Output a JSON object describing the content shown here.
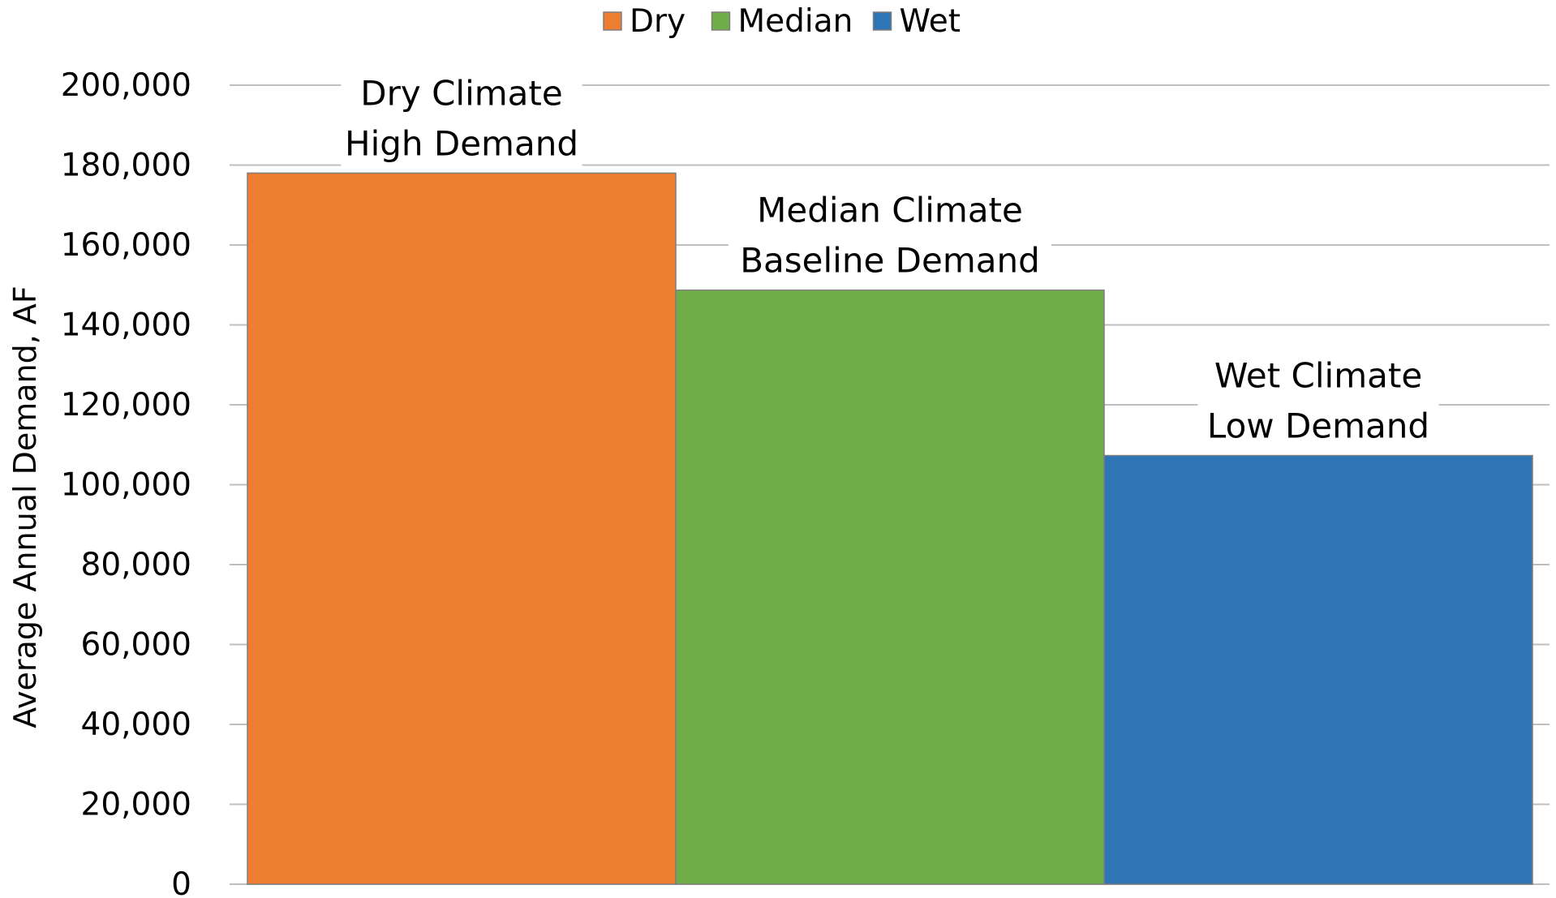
{
  "chart_data": {
    "type": "bar",
    "categories": [
      "Dry",
      "Median",
      "Wet"
    ],
    "values": [
      178000,
      148700,
      107300
    ],
    "colors": {
      "Dry": "#ED7D31",
      "Median": "#70AD47",
      "Wet": "#2E75B6"
    },
    "legend": {
      "position": "top-center",
      "entries": [
        "Dry",
        "Median",
        "Wet"
      ]
    },
    "annotations": [
      {
        "series": "Dry",
        "lines": [
          "Dry Climate",
          "High Demand"
        ]
      },
      {
        "series": "Median",
        "lines": [
          "Median Climate",
          "Baseline Demand"
        ]
      },
      {
        "series": "Wet",
        "lines": [
          "Wet Climate",
          "Low Demand"
        ]
      }
    ],
    "ylabel": "Average Annual Demand, AF",
    "xlabel": "",
    "ylim": [
      0,
      200000
    ],
    "yticks": [
      0,
      20000,
      40000,
      60000,
      80000,
      100000,
      120000,
      140000,
      160000,
      180000,
      200000
    ],
    "ytick_labels": [
      "0",
      "20,000",
      "40,000",
      "60,000",
      "80,000",
      "100,000",
      "120,000",
      "140,000",
      "160,000",
      "180,000",
      "200,000"
    ],
    "grid": true
  }
}
